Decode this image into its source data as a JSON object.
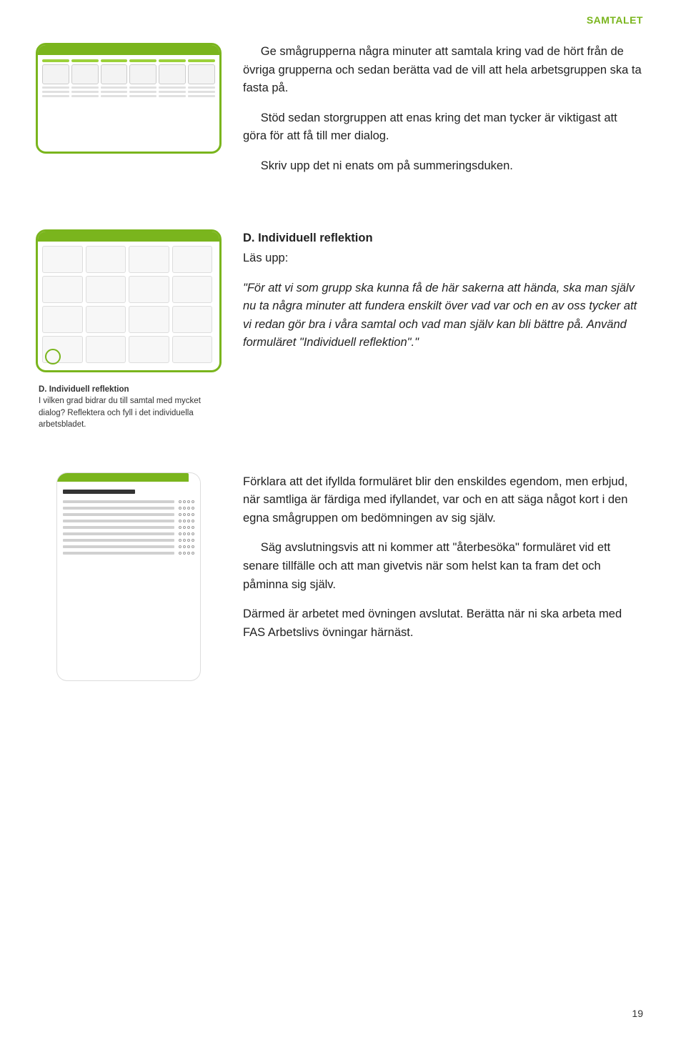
{
  "running_header": "SAMTALET",
  "page_number": "19",
  "colors": {
    "green": "#7ab51d"
  },
  "row1": {
    "para1": "Ge smågrupperna några minuter att samtala kring vad de hört från de övriga grupperna och sedan berätta vad de vill att hela arbetsgruppen ska ta fasta på.",
    "para2": "Stöd sedan storgruppen att enas kring det man tycker är viktigast att göra för att få till mer dialog.",
    "para3": "Skriv upp det ni enats om på summeringsduken."
  },
  "row2": {
    "heading": "D. Individuell reflektion",
    "lead": "Läs upp:",
    "quote": "\"För att vi som grupp ska kunna få de här sakerna att hända, ska man själv nu ta några minuter att fundera enskilt över vad var och en av oss tycker att vi redan gör bra i våra samtal och vad man själv kan bli bättre på. Använd formuläret \"Individuell reflektion\".\"",
    "left_caption_title": "D. Individuell reflektion",
    "left_caption_body": "I vilken grad bidrar du till samtal med mycket dialog? Reflektera och fyll i det individuella arbetsbladet."
  },
  "row3": {
    "para1": "Förklara att det ifyllda formuläret blir den enskildes egendom, men erbjud, när samtliga är färdiga med ifyllandet, var och en att säga något kort i den egna smågruppen om bedömningen av sig själv.",
    "para2": "Säg avslutningsvis att ni kommer att \"återbesöka\" formuläret vid ett senare tillfälle och att man givetvis när som helst kan ta fram det och påminna sig själv.",
    "para3": "Därmed är arbetet med övningen avslutat. Berätta när ni ska arbeta med FAS Arbetslivs övningar härnäst."
  }
}
